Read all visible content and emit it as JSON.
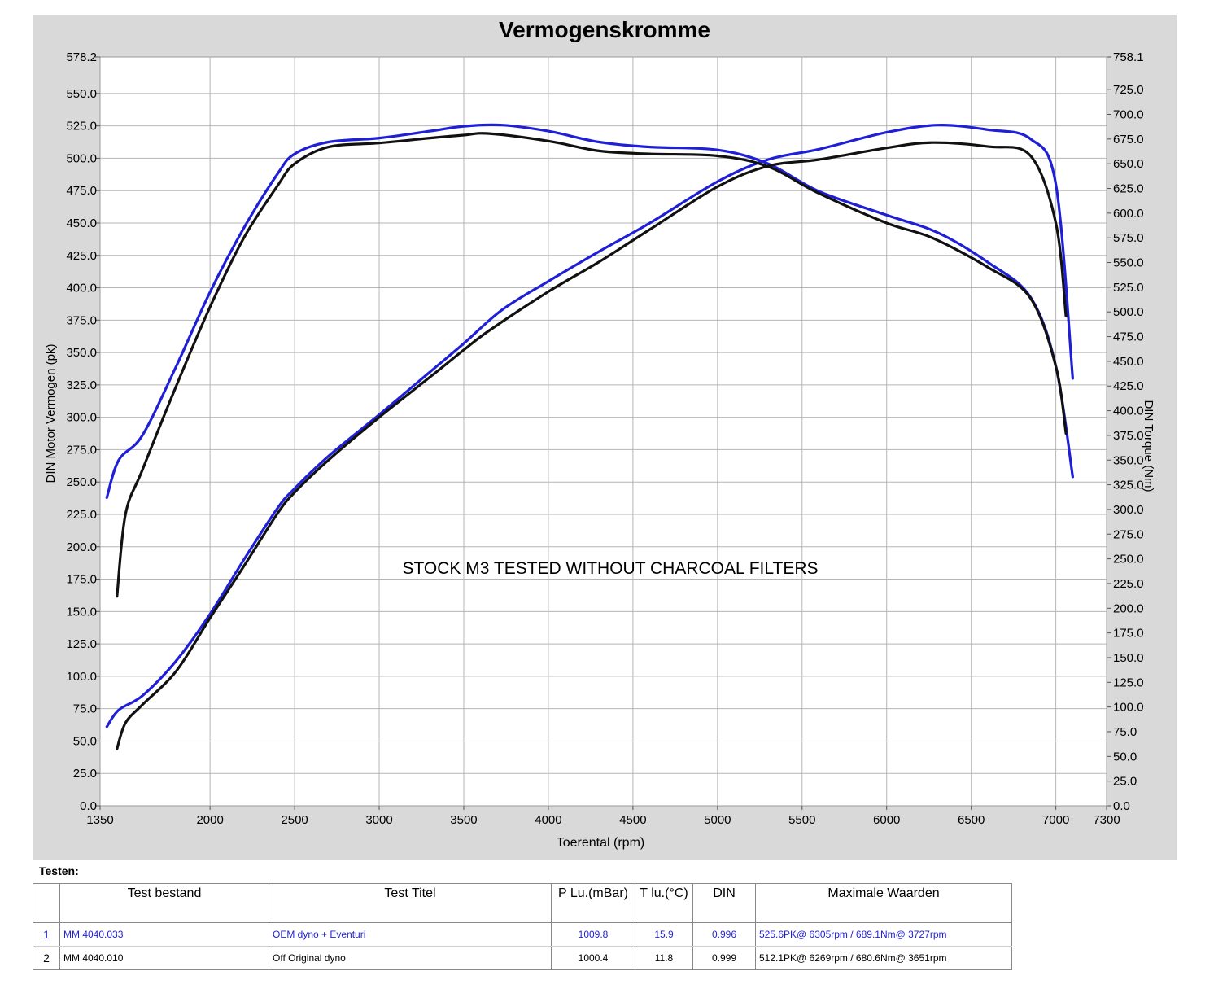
{
  "chart_data": {
    "type": "line",
    "title": "Vermogenskromme",
    "xlabel": "Toerental (rpm)",
    "ylabel": "DIN Motor Vermogen (pk)",
    "y2label": "DIN Torque (Nm)",
    "annotation": "STOCK M3 TESTED WITHOUT CHARCOAL FILTERS",
    "xlim": [
      1350,
      7300
    ],
    "x_ticks": [
      "1350",
      "2000",
      "2500",
      "3000",
      "3500",
      "4000",
      "4500",
      "5000",
      "5500",
      "6000",
      "6500",
      "7000",
      "7300"
    ],
    "ylim": [
      0,
      578.2
    ],
    "y_ticks": [
      "0.0",
      "25.0",
      "50.0",
      "75.0",
      "100.0",
      "125.0",
      "150.0",
      "175.0",
      "200.0",
      "225.0",
      "250.0",
      "275.0",
      "300.0",
      "325.0",
      "350.0",
      "375.0",
      "400.0",
      "425.0",
      "450.0",
      "475.0",
      "500.0",
      "525.0",
      "550.0",
      "578.2"
    ],
    "y2lim": [
      0,
      758.1
    ],
    "y2_ticks": [
      "0.0",
      "25.0",
      "50.0",
      "75.0",
      "100.0",
      "125.0",
      "150.0",
      "175.0",
      "200.0",
      "225.0",
      "250.0",
      "275.0",
      "300.0",
      "325.0",
      "350.0",
      "375.0",
      "400.0",
      "425.0",
      "450.0",
      "475.0",
      "500.0",
      "525.0",
      "550.0",
      "575.0",
      "600.0",
      "625.0",
      "650.0",
      "675.0",
      "700.0",
      "725.0",
      "758.1"
    ],
    "grid": true,
    "series": [
      {
        "name": "MM 4040.033",
        "color": "#1f1fd6",
        "kind": "power",
        "axis": "left",
        "x": [
          1390,
          1460,
          1600,
          1800,
          2000,
          2200,
          2400,
          2500,
          2700,
          3000,
          3300,
          3500,
          3727,
          4000,
          4300,
          4600,
          5000,
          5300,
          5600,
          6000,
          6305,
          6600,
          6850,
          7000,
          7100
        ],
        "y": [
          61,
          74,
          85,
          112,
          148,
          190,
          230,
          245,
          270,
          302,
          335,
          357,
          383,
          405,
          428,
          450,
          482,
          499,
          507,
          520,
          525.6,
          522,
          515,
          480,
          330
        ]
      },
      {
        "name": "MM 4040.033",
        "color": "#1f1fd6",
        "kind": "torque",
        "axis": "right",
        "x": [
          1390,
          1460,
          1600,
          1800,
          2000,
          2200,
          2400,
          2500,
          2700,
          3000,
          3300,
          3500,
          3727,
          4000,
          4300,
          4600,
          5000,
          5300,
          5600,
          6000,
          6305,
          6600,
          6850,
          7000,
          7100
        ],
        "y": [
          312,
          350,
          375,
          445,
          520,
          585,
          640,
          660,
          672,
          676,
          683,
          688,
          689.1,
          683,
          672,
          667,
          664,
          650,
          622,
          598,
          580,
          550,
          515,
          445,
          333
        ]
      },
      {
        "name": "MM 4040.010",
        "color": "#111111",
        "kind": "power",
        "axis": "left",
        "x": [
          1450,
          1500,
          1600,
          1800,
          2000,
          2200,
          2400,
          2500,
          2700,
          3000,
          3300,
          3500,
          3651,
          4000,
          4300,
          4600,
          5000,
          5300,
          5600,
          6000,
          6269,
          6600,
          6850,
          7000,
          7060
        ],
        "y": [
          44,
          64,
          78,
          104,
          145,
          185,
          226,
          242,
          267,
          300,
          331,
          352,
          367,
          397,
          420,
          445,
          478,
          494,
          499,
          508,
          512.1,
          509,
          502,
          450,
          378
        ]
      },
      {
        "name": "MM 4040.010",
        "color": "#111111",
        "kind": "torque",
        "axis": "right",
        "x": [
          1450,
          1500,
          1600,
          1800,
          2000,
          2200,
          2400,
          2500,
          2700,
          3000,
          3300,
          3500,
          3651,
          4000,
          4300,
          4600,
          5000,
          5300,
          5600,
          6000,
          6269,
          6600,
          6850,
          7000,
          7060
        ],
        "y": [
          212,
          295,
          340,
          425,
          505,
          575,
          628,
          650,
          667,
          671,
          676,
          679,
          680.6,
          673,
          663,
          660,
          658,
          647,
          620,
          590,
          575,
          545,
          514,
          445,
          377
        ]
      }
    ]
  },
  "testen_label": "Testen:",
  "table": {
    "headers": [
      "Test bestand",
      "Test Titel",
      "P Lu.(mBar)",
      "T lu.(°C)",
      "DIN",
      "Maximale Waarden"
    ],
    "rows": [
      {
        "nr": "1",
        "file": "MM 4040.033",
        "title": "OEM dyno + Eventuri",
        "p": "1009.8",
        "t": "15.9",
        "din": "0.996",
        "max": "525.6PK@ 6305rpm / 689.1Nm@ 3727rpm"
      },
      {
        "nr": "2",
        "file": "MM 4040.010",
        "title": "Off Original dyno",
        "p": "1000.4",
        "t": "11.8",
        "din": "0.999",
        "max": "512.1PK@ 6269rpm / 680.6Nm@ 3651rpm"
      }
    ]
  }
}
